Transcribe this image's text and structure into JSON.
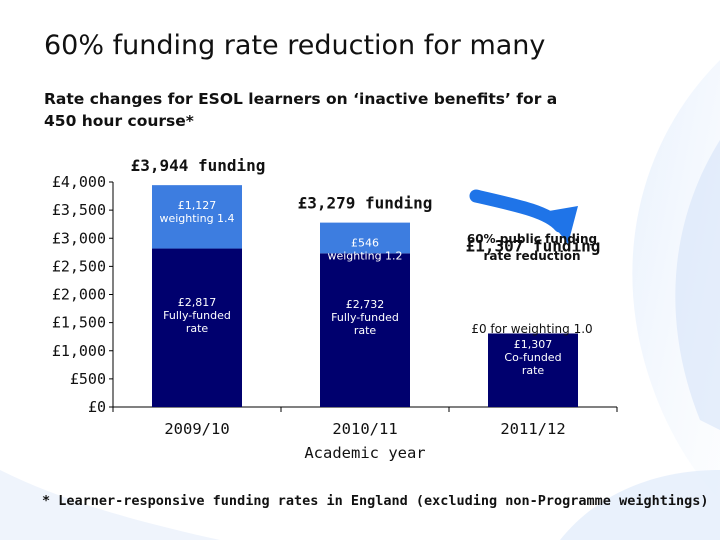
{
  "title": "60% funding rate reduction for many",
  "subtitle": "Rate changes for ESOL learners on ‘inactive benefits’ for a 450 hour course*",
  "footnote": "* Learner-responsive funding rates in England (excluding non-Programme weightings)",
  "callout": {
    "line1": "60% public funding",
    "line2": "rate reduction",
    "note": "£0 for weighting 1.0"
  },
  "colors": {
    "base": "#00006e",
    "weighting": "#3d7de0",
    "arrow": "#1f74e8",
    "axis": "#000000"
  },
  "chart_data": {
    "type": "bar",
    "stacked": true,
    "categories": [
      "2009/10",
      "2010/11",
      "2011/12"
    ],
    "xlabel": "Academic year",
    "ylabel": "",
    "ylim": [
      0,
      4000
    ],
    "yticks": [
      0,
      500,
      1000,
      1500,
      2000,
      2500,
      3000,
      3500,
      4000
    ],
    "ytick_labels": [
      "£0",
      "£500",
      "£1,000",
      "£1,500",
      "£2,000",
      "£2,500",
      "£3,000",
      "£3,500",
      "£4,000"
    ],
    "grid": false,
    "legend": "none",
    "totals": [
      "£3,944 funding",
      "£3,279 funding",
      "£1,307 funding"
    ],
    "series": [
      {
        "values": [
          2817,
          2732,
          1307
        ],
        "labels": [
          [
            "£2,817",
            "Fully-funded",
            "rate"
          ],
          [
            "£2,732",
            "Fully-funded",
            "rate"
          ],
          [
            "£1,307",
            "Co-funded",
            "rate"
          ]
        ]
      },
      {
        "values": [
          1127,
          546,
          0
        ],
        "labels": [
          [
            "£1,127",
            "weighting 1.4"
          ],
          [
            "£546",
            "weighting 1.2"
          ],
          []
        ]
      }
    ]
  }
}
